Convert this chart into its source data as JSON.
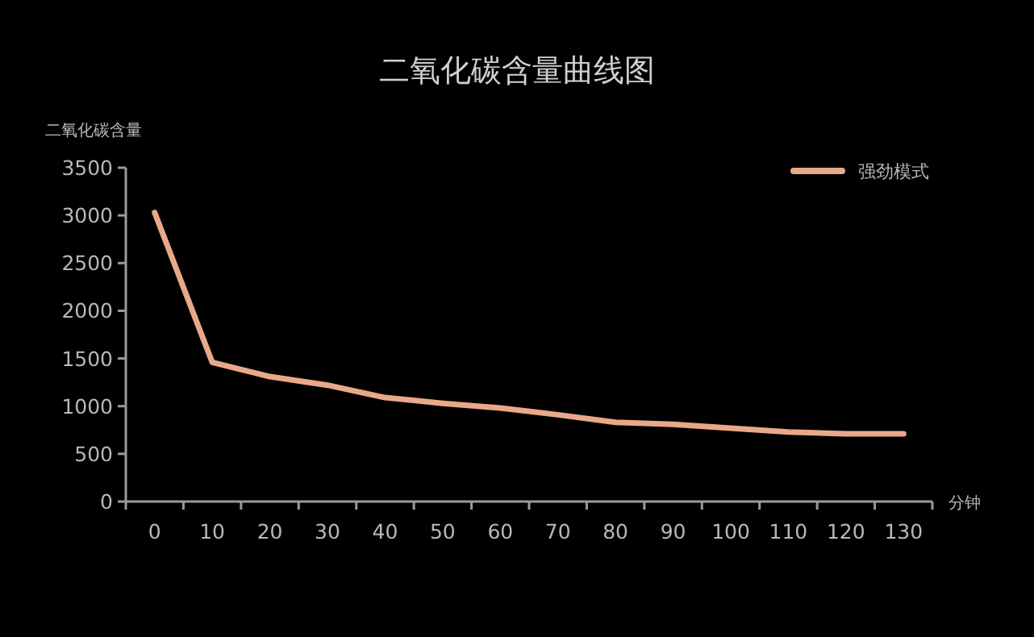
{
  "chart_data": {
    "type": "line",
    "title": "二氧化碳含量曲线图",
    "xlabel": "分钟",
    "ylabel": "二氧化碳含量",
    "categories": [
      "0",
      "10",
      "20",
      "30",
      "40",
      "50",
      "60",
      "70",
      "80",
      "90",
      "100",
      "110",
      "120",
      "130"
    ],
    "series": [
      {
        "name": "强劲模式",
        "color": "#e8a98a",
        "values": [
          3030,
          1460,
          1310,
          1220,
          1090,
          1030,
          980,
          910,
          830,
          810,
          770,
          730,
          710,
          710
        ]
      }
    ],
    "ylim": [
      0,
      3500
    ],
    "yticks": [
      0,
      500,
      1000,
      1500,
      2000,
      2500,
      3000,
      3500
    ],
    "grid": false,
    "legend": "top right",
    "marker": "none",
    "line_style": "solid"
  }
}
